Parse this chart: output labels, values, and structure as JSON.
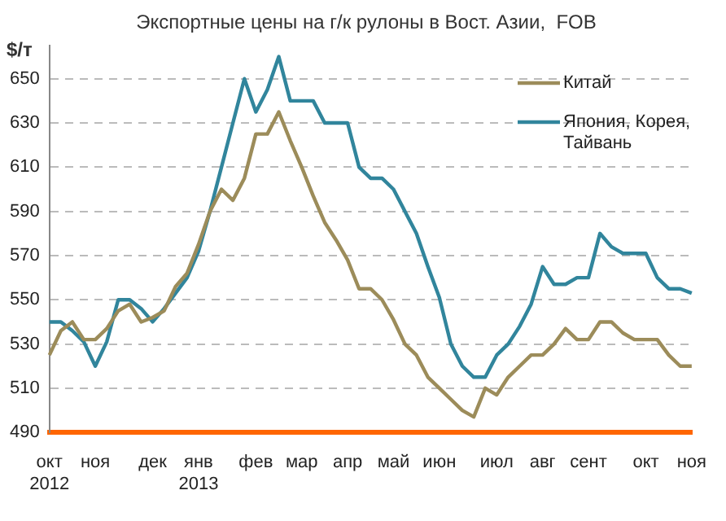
{
  "chart_data": {
    "type": "line",
    "title": "Экспортные цены на г/к рулоны в Вост. Азии,  FOB",
    "ylabel": "$/т",
    "categories": [
      "окт\n2012",
      null,
      null,
      null,
      "ноя",
      null,
      null,
      null,
      null,
      "дек",
      null,
      null,
      null,
      "янв\n2013",
      null,
      null,
      null,
      null,
      "фев",
      null,
      null,
      null,
      "мар",
      null,
      null,
      null,
      "апр",
      null,
      null,
      null,
      "май",
      null,
      null,
      null,
      "июн",
      null,
      null,
      null,
      null,
      "июл",
      null,
      null,
      null,
      "авг",
      null,
      null,
      null,
      "сент",
      null,
      null,
      null,
      null,
      "окт",
      null,
      null,
      null,
      "ноя"
    ],
    "series": [
      {
        "name": "Китай",
        "color": "#9c8c5a",
        "values": [
          525,
          536,
          540,
          532,
          532,
          537,
          545,
          548,
          540,
          542,
          545,
          556,
          562,
          575,
          590,
          600,
          595,
          605,
          625,
          625,
          635,
          622,
          610,
          597,
          585,
          577,
          568,
          555,
          555,
          550,
          541,
          530,
          525,
          515,
          510,
          505,
          500,
          497,
          510,
          507,
          515,
          520,
          525,
          525,
          530,
          537,
          532,
          532,
          540,
          540,
          535,
          532,
          532,
          532,
          525,
          520,
          520
        ]
      },
      {
        "name": "Япония, Корея, Тайвань",
        "color": "#31859c",
        "values": [
          540,
          540,
          536,
          531,
          520,
          531,
          550,
          550,
          546,
          540,
          546,
          553,
          560,
          572,
          590,
          610,
          630,
          650,
          635,
          645,
          660,
          640,
          640,
          640,
          630,
          630,
          630,
          610,
          605,
          605,
          600,
          590,
          580,
          565,
          551,
          530,
          520,
          515,
          515,
          525,
          530,
          538,
          548,
          565,
          557,
          557,
          560,
          560,
          580,
          574,
          571,
          571,
          571,
          560,
          555,
          555,
          553
        ]
      }
    ],
    "ylim": [
      490,
      665
    ],
    "yticks": [
      490,
      510,
      530,
      550,
      570,
      590,
      610,
      630,
      650
    ],
    "grid": "y",
    "legend": "top right",
    "line_style": "solid",
    "marker": "none"
  }
}
